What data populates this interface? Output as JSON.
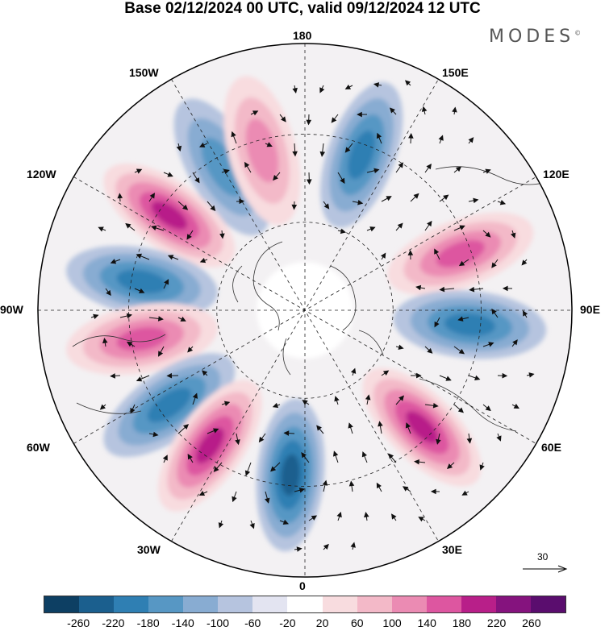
{
  "title": "Base 02/12/2024 00 UTC, valid 09/12/2024 12 UTC",
  "brand": "MODES",
  "brand_mark": "©",
  "longitude_labels": {
    "top": "180",
    "bottom": "0",
    "left": "90W",
    "right": "90E",
    "nw1": "150W",
    "nw2": "120W",
    "ne1": "150E",
    "ne2": "120E",
    "sw1": "60W",
    "sw2": "30W",
    "se1": "60E",
    "se2": "30E"
  },
  "reference_vector": "30",
  "colorbar": {
    "ticks": [
      "-260",
      "-220",
      "-180",
      "-140",
      "-100",
      "-60",
      "-20",
      "20",
      "60",
      "100",
      "140",
      "180",
      "220",
      "260"
    ],
    "colors": [
      "#0d3f63",
      "#1b5f8e",
      "#2f7fb3",
      "#5797c4",
      "#88acd2",
      "#b6c4df",
      "#e3e4f1",
      "#ffffff",
      "#f8dcdf",
      "#f3b9c8",
      "#eb8bb3",
      "#dd56a0",
      "#b81f89",
      "#85137e",
      "#5a0d6e"
    ]
  },
  "map_features": {
    "projection": "north polar stereographic",
    "anomaly_centers": [
      {
        "sign": "negative",
        "strength": 2,
        "near": "150W"
      },
      {
        "sign": "positive",
        "strength": 2,
        "near": "165W"
      },
      {
        "sign": "negative",
        "strength": 3,
        "near": "160E"
      },
      {
        "sign": "positive",
        "strength": 4,
        "near": "125W"
      },
      {
        "sign": "positive",
        "strength": 3,
        "near": "110E"
      },
      {
        "sign": "negative",
        "strength": 3,
        "near": "100W"
      },
      {
        "sign": "negative",
        "strength": 3,
        "near": "85E"
      },
      {
        "sign": "positive",
        "strength": 3,
        "near": "80W"
      },
      {
        "sign": "negative",
        "strength": 3,
        "near": "55W"
      },
      {
        "sign": "positive",
        "strength": 4,
        "near": "35W"
      },
      {
        "sign": "negative",
        "strength": 4,
        "near": "5W"
      },
      {
        "sign": "positive",
        "strength": 4,
        "near": "45E"
      }
    ]
  }
}
